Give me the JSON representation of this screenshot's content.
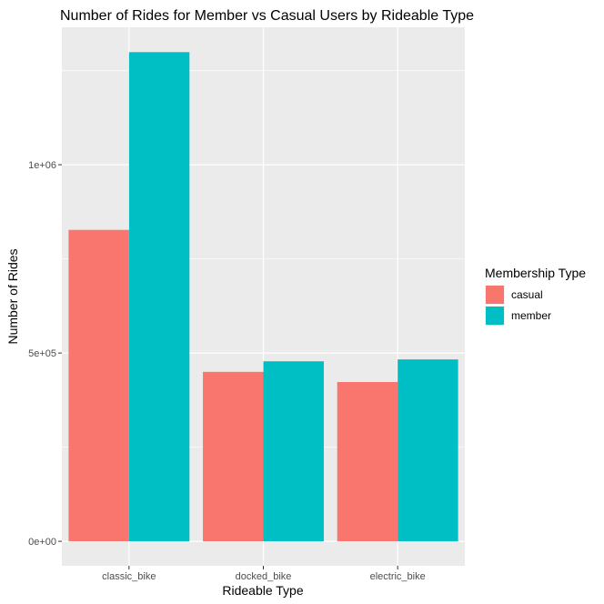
{
  "chart_data": {
    "type": "bar",
    "title": "Number of Rides for Member vs Casual Users by Rideable Type",
    "xlabel": "Rideable Type",
    "ylabel": "Number of Rides",
    "categories": [
      "classic_bike",
      "docked_bike",
      "electric_bike"
    ],
    "series": [
      {
        "name": "casual",
        "color": "#F8766D",
        "values": [
          827000,
          450000,
          423000
        ]
      },
      {
        "name": "member",
        "color": "#00BFC4",
        "values": [
          1299000,
          478000,
          483000
        ]
      }
    ],
    "yticks": [
      {
        "value": 0,
        "label": "0e+00"
      },
      {
        "value": 500000,
        "label": "5e+05"
      },
      {
        "value": 1000000,
        "label": "1e+06"
      }
    ],
    "ylim": [
      -65000,
      1365000
    ],
    "grid": true,
    "legend": {
      "title": "Membership Type",
      "position": "right"
    },
    "colors": {
      "panel": "#EBEBEB",
      "gridline": "#FFFFFF"
    }
  }
}
